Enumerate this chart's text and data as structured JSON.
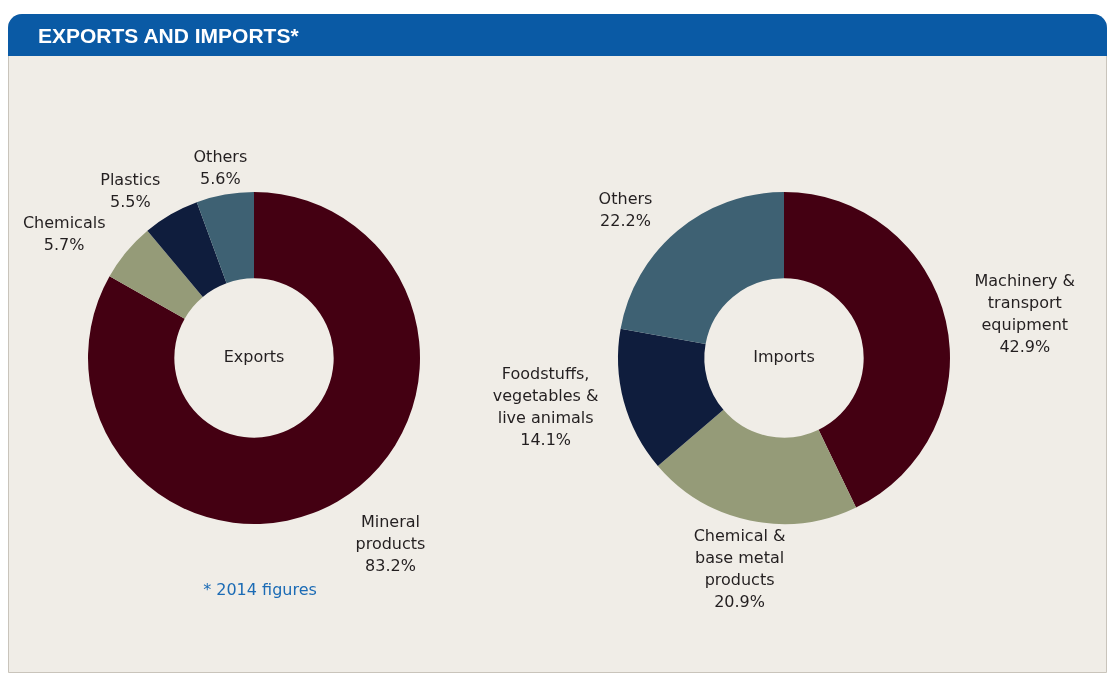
{
  "chart_data": [
    {
      "type": "donut",
      "title": "EXPORTS AND IMPORTS*",
      "subtitle": "Exports",
      "categories": [
        "Mineral products",
        "Chemicals",
        "Plastics",
        "Others"
      ],
      "values": [
        83.2,
        5.7,
        5.5,
        5.6
      ],
      "value_labels": [
        "83.2%",
        "5.7%",
        "5.5%",
        "5.6%"
      ],
      "colors": [
        "#440012",
        "#959b78",
        "#0f1d3d",
        "#3e6173"
      ],
      "annotations": [
        "* 2014 figures"
      ],
      "legend": false
    },
    {
      "type": "donut",
      "subtitle": "Imports",
      "categories": [
        "Machinery & transport equipment",
        "Chemical & base metal products",
        "Foodstuffs, vegetables & live animals",
        "Others"
      ],
      "values": [
        42.9,
        20.9,
        14.1,
        22.2
      ],
      "value_labels": [
        "42.9%",
        "20.9%",
        "14.1%",
        "22.2%"
      ],
      "colors": [
        "#440012",
        "#959b78",
        "#0f1d3d",
        "#3e6173"
      ],
      "legend": false
    }
  ]
}
